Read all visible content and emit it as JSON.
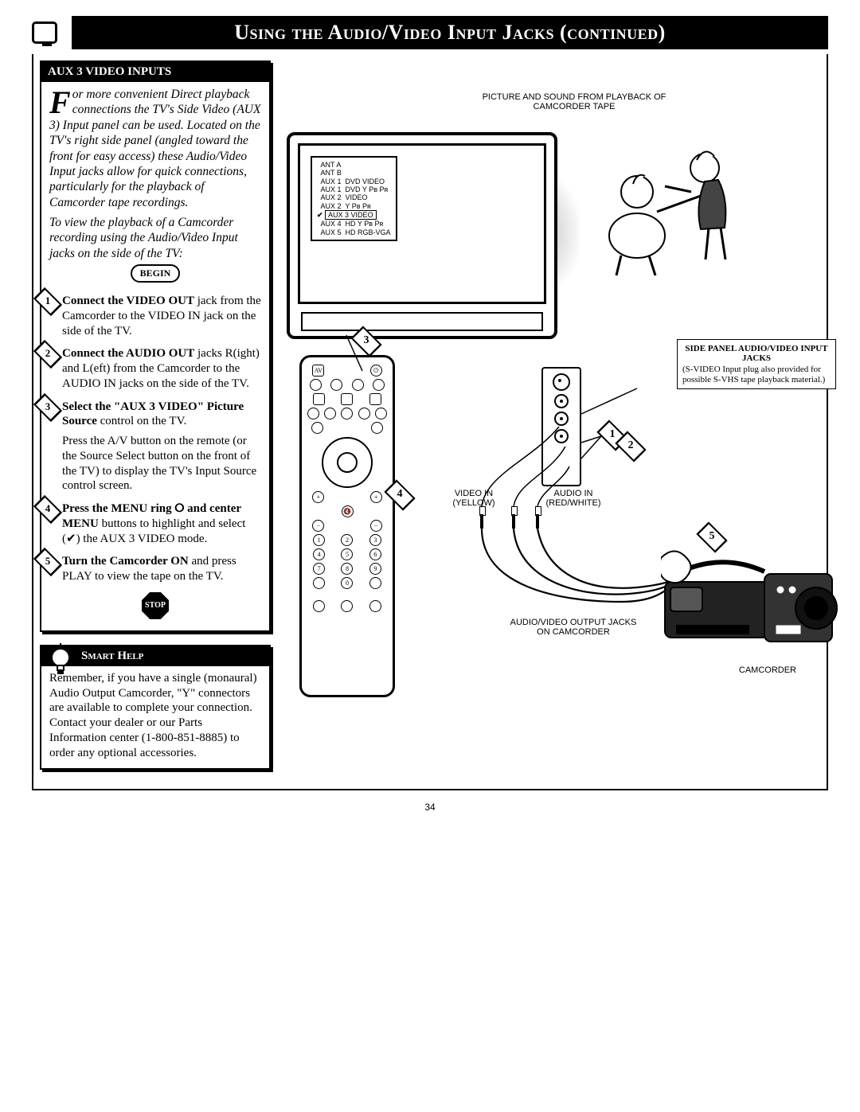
{
  "page_title": "Using the Audio/Video Input Jacks (continued)",
  "section_header": "AUX 3 VIDEO INPUTS",
  "intro_dropcap": "F",
  "intro_text": "or more convenient Direct playback connections the TV's Side Video (AUX 3) Input panel can be used. Located on the TV's right side panel (angled toward the front for easy access) these Audio/Video Input jacks allow for quick connections, particularly for the playback of Camcorder tape recordings.",
  "intro_sub": "To view the playback of a Camcorder recording using the Audio/Video Input jacks on the side of the TV:",
  "begin_label": "BEGIN",
  "stop_label": "STOP",
  "steps": [
    {
      "n": "1",
      "bold": "Connect the VIDEO OUT",
      "rest": " jack from the Camcorder to the VIDEO IN jack on the side of the TV."
    },
    {
      "n": "2",
      "bold": "Connect the AUDIO OUT",
      "rest": " jacks R(ight) and L(eft) from the Camcorder to the AUDIO IN jacks on the side of the TV."
    },
    {
      "n": "3",
      "bold": "Select the \"AUX 3 VIDEO\" Picture Source",
      "rest": " control on the TV.",
      "extra": "Press the A/V button on the remote (or the Source Select button on the front of the TV) to display the TV's Input Source control screen."
    },
    {
      "n": "4",
      "bold": "Press the MENU ring ⭘ and center MENU",
      "rest": " buttons to highlight and select (✔) the AUX 3 VIDEO mode."
    },
    {
      "n": "5",
      "bold": "Turn the Camcorder ON",
      "rest": " and press PLAY to view the tape on the TV."
    }
  ],
  "smart_header": "Smart Help",
  "smart_body": "Remember, if you have a single (monaural) Audio Output Camcorder, \"Y\" connectors are available to complete your connection. Contact your dealer or our Parts Information center (1-800-851-8885) to order any optional accessories.",
  "diagram": {
    "top_caption": "PICTURE AND SOUND FROM PLAYBACK OF CAMCORDER TAPE",
    "osd_lines": [
      "ANT A",
      "ANT B",
      "AUX 1  DVD VIDEO",
      "AUX 1  DVD Y Pʙ Pʀ",
      "AUX 2  VIDEO",
      "AUX 2  Y Pʙ Pʀ",
      "AUX 3  VIDEO",
      "AUX 4  HD Y Pʙ Pʀ",
      "AUX 5  HD RGB-VGA"
    ],
    "osd_selected_index": 6,
    "side_callout_header": "SIDE PANEL AUDIO/VIDEO INPUT JACKS",
    "side_callout_note": "(S-VIDEO Input plug also provided for possible S-VHS tape playback material.)",
    "video_in_label": "VIDEO IN (YELLOW)",
    "audio_in_label": "AUDIO IN (RED/WHITE)",
    "cam_jacks_label": "AUDIO/VIDEO OUTPUT JACKS ON CAMCORDER",
    "camcorder_label": "CAMCORDER",
    "markers": {
      "m1": "1",
      "m2": "2",
      "m3": "3",
      "m4": "4",
      "m5": "5"
    }
  },
  "page_number": "34",
  "colors": {
    "ink": "#000000",
    "paper": "#ffffff",
    "shade": "#bbbbbb"
  }
}
